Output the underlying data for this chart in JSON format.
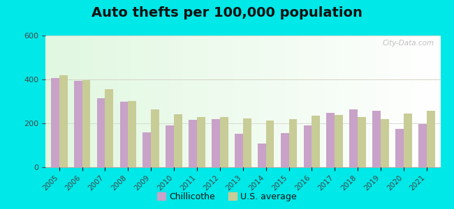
{
  "title": "Auto thefts per 100,000 population",
  "years": [
    2005,
    2006,
    2007,
    2008,
    2009,
    2010,
    2011,
    2012,
    2013,
    2014,
    2015,
    2016,
    2017,
    2018,
    2019,
    2020,
    2021
  ],
  "chillicothe": [
    405,
    393,
    313,
    300,
    158,
    192,
    215,
    218,
    152,
    108,
    155,
    192,
    248,
    262,
    258,
    175,
    198
  ],
  "us_average": [
    418,
    398,
    357,
    302,
    262,
    240,
    228,
    230,
    221,
    212,
    220,
    236,
    237,
    228,
    220,
    246,
    258
  ],
  "chillicothe_color": "#c8a2c8",
  "us_avg_color": "#c8cc96",
  "outer_bg": "#00e8e8",
  "plot_bg": "#f0f8ee",
  "ylim": [
    0,
    600
  ],
  "yticks": [
    0,
    200,
    400,
    600
  ],
  "title_fontsize": 14,
  "bar_width": 0.36,
  "legend_labels": [
    "Chillicothe",
    "U.S. average"
  ],
  "watermark": "City-Data.com"
}
